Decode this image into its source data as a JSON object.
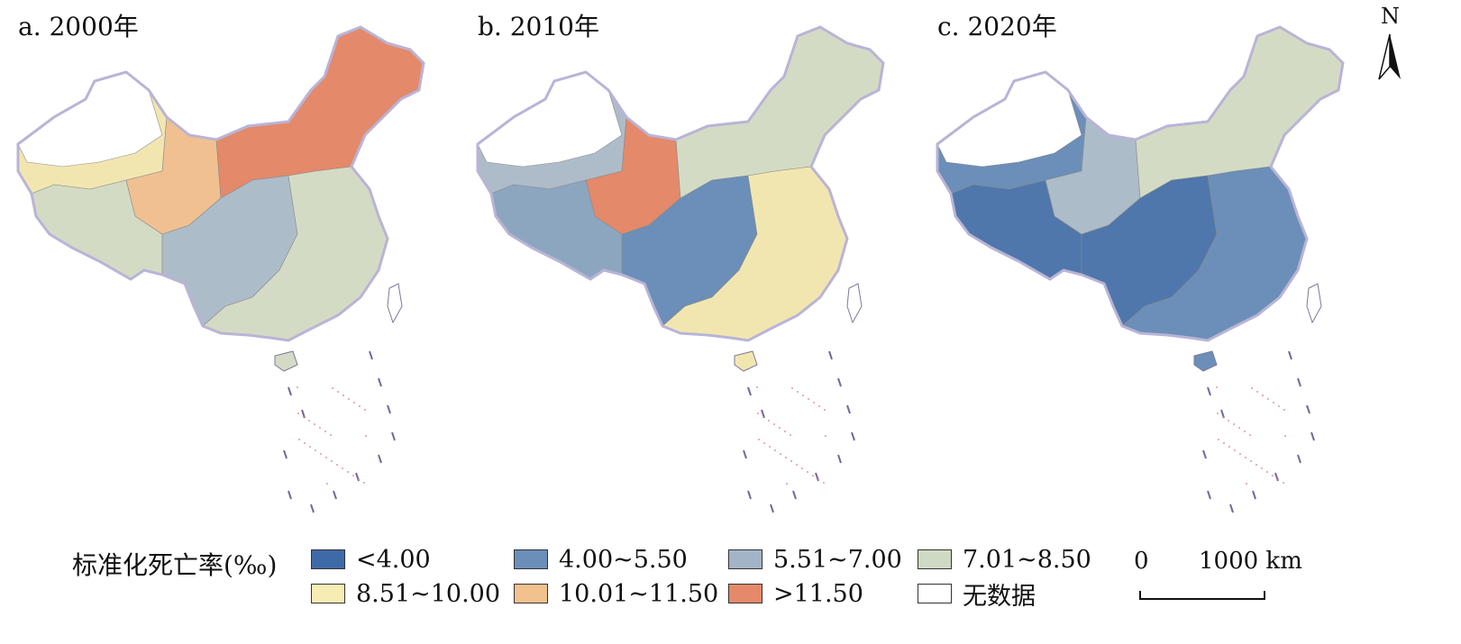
{
  "panels": [
    {
      "title": "a. 2000年",
      "colors": [
        "#f2e6b0",
        "#d4dbc5",
        "#f0c091",
        "#e4896a",
        "#adbcc9",
        "#d4dbc5"
      ]
    },
    {
      "title": "b. 2010年",
      "colors": [
        "#aebcca",
        "#8da6c0",
        "#e4896a",
        "#d4dbc5",
        "#6b8fb8",
        "#f2e6b0"
      ]
    },
    {
      "title": "c. 2020年",
      "colors": [
        "#6b8fb8",
        "#4f77ac",
        "#adbcc9",
        "#d4dbc5",
        "#4f77ac",
        "#6b8fb8"
      ]
    }
  ],
  "legend": {
    "title": "标准化死亡率(‰)",
    "items": [
      {
        "label": "<4.00",
        "color": "#3f6aa8"
      },
      {
        "label": "4.00~5.50",
        "color": "#6b8fb8"
      },
      {
        "label": "5.51~7.00",
        "color": "#a3b4c6"
      },
      {
        "label": "7.01~8.50",
        "color": "#cfd9c4"
      },
      {
        "label": "8.51~10.00",
        "color": "#f5edb4"
      },
      {
        "label": "10.01~11.50",
        "color": "#f1c18e"
      },
      {
        "label": ">11.50",
        "color": "#e4896a"
      },
      {
        "label": "无数据",
        "color": "#ffffff"
      }
    ]
  },
  "scale": {
    "zero": "0",
    "max": "1000 km"
  },
  "north": {
    "label": "N"
  }
}
